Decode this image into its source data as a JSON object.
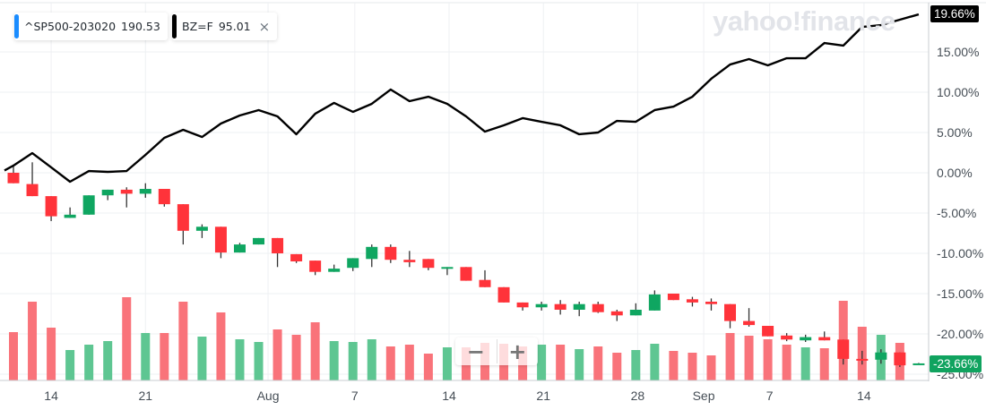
{
  "legend": [
    {
      "symbol": "^SP500-203020",
      "value": "190.53",
      "color": "#1a8cff"
    },
    {
      "symbol": "BZ=F",
      "value": "95.01",
      "color": "#000000",
      "close_icon": "close-icon",
      "close_label": "×"
    }
  ],
  "watermark": "yahoo!finance",
  "last_labels": {
    "line": {
      "text": "19.66%",
      "color": "#000000"
    },
    "candle": {
      "text": "-23.66%",
      "color": "#10a35f"
    }
  },
  "zoom_controls": {
    "zoom_out": "−",
    "zoom_in": "+"
  },
  "colors": {
    "up": "#0fa661",
    "down": "#ff333a",
    "volume_up": "#5ec692",
    "volume_down": "#f9737a",
    "line": "#000000",
    "grid": "#eef0f3"
  },
  "chart_data": {
    "type": "candlestick+line+volume",
    "y_unit": "% change",
    "ylim": [
      -25,
      20
    ],
    "y_ticks": [
      "15.00%",
      "10.00%",
      "5.00%",
      "0.00%",
      "-5.00%",
      "-10.00%",
      "-15.00%",
      "-20.00%",
      "-25.00%"
    ],
    "y_tick_values": [
      15,
      10,
      5,
      0,
      -5,
      -10,
      -15,
      -20,
      -25
    ],
    "x_ticks": [
      {
        "label": "14",
        "index": 2
      },
      {
        "label": "21",
        "index": 7
      },
      {
        "label": "Aug",
        "index": 13.5
      },
      {
        "label": "7",
        "index": 18.1
      },
      {
        "label": "14",
        "index": 23.1
      },
      {
        "label": "21",
        "index": 28.1
      },
      {
        "label": "28",
        "index": 33.1
      },
      {
        "label": "Sep",
        "index": 36.6
      },
      {
        "label": "7",
        "index": 40.1
      },
      {
        "label": "14",
        "index": 45.1
      }
    ],
    "grid": true,
    "line_series": {
      "name": "BZ=F",
      "values": [
        0.89,
        2.44,
        0.67,
        -1.11,
        0.22,
        0.11,
        0.22,
        2.22,
        4.33,
        5.33,
        4.44,
        6.11,
        7.11,
        7.78,
        7.0,
        4.78,
        7.33,
        8.67,
        7.56,
        8.56,
        10.33,
        8.89,
        9.44,
        8.56,
        7.0,
        5.11,
        5.89,
        6.78,
        6.33,
        5.89,
        4.78,
        5.0,
        6.44,
        6.33,
        7.78,
        8.22,
        9.44,
        11.67,
        13.44,
        14.11,
        13.33,
        14.22,
        14.22,
        16.11,
        15.78,
        18.11,
        18.33,
        19.0,
        19.66
      ]
    },
    "candle_series": {
      "name": "^SP500-203020",
      "ohlc": [
        [
          0.0,
          0.8,
          -1.3,
          -1.3
        ],
        [
          -1.4,
          1.3,
          -2.9,
          -2.9
        ],
        [
          -2.9,
          -2.9,
          -6.0,
          -5.4
        ],
        [
          -5.6,
          -4.3,
          -5.6,
          -5.2
        ],
        [
          -5.2,
          -2.8,
          -5.2,
          -2.8
        ],
        [
          -2.8,
          -2.1,
          -3.4,
          -2.1
        ],
        [
          -2.1,
          -1.8,
          -4.3,
          -2.6
        ],
        [
          -2.6,
          -1.3,
          -3.1,
          -2.0
        ],
        [
          -2.0,
          -2.0,
          -4.2,
          -3.9
        ],
        [
          -3.9,
          -3.9,
          -8.9,
          -7.2
        ],
        [
          -7.2,
          -6.4,
          -8.1,
          -6.7
        ],
        [
          -6.7,
          -6.7,
          -10.6,
          -9.9
        ],
        [
          -9.9,
          -8.7,
          -9.9,
          -8.9
        ],
        [
          -8.9,
          -8.1,
          -8.9,
          -8.1
        ],
        [
          -8.1,
          -8.1,
          -11.7,
          -10.0
        ],
        [
          -10.1,
          -10.1,
          -11.2,
          -11.0
        ],
        [
          -10.9,
          -10.9,
          -12.7,
          -12.3
        ],
        [
          -12.3,
          -11.4,
          -12.3,
          -11.9
        ],
        [
          -11.8,
          -10.6,
          -12.2,
          -10.6
        ],
        [
          -10.7,
          -8.9,
          -11.7,
          -9.2
        ],
        [
          -9.2,
          -8.9,
          -11.2,
          -10.8
        ],
        [
          -10.8,
          -9.7,
          -11.7,
          -11.1
        ],
        [
          -10.7,
          -10.7,
          -12.1,
          -11.8
        ],
        [
          -11.9,
          -11.7,
          -12.7,
          -11.7
        ],
        [
          -11.7,
          -11.7,
          -13.4,
          -13.4
        ],
        [
          -13.3,
          -12.1,
          -14.2,
          -14.2
        ],
        [
          -14.2,
          -14.2,
          -16.1,
          -16.1
        ],
        [
          -16.1,
          -16.1,
          -17.1,
          -16.7
        ],
        [
          -16.7,
          -16.0,
          -17.1,
          -16.3
        ],
        [
          -16.3,
          -15.8,
          -17.6,
          -17.0
        ],
        [
          -17.0,
          -16.0,
          -17.8,
          -16.3
        ],
        [
          -16.3,
          -16.0,
          -17.4,
          -17.3
        ],
        [
          -17.2,
          -17.0,
          -18.4,
          -17.7
        ],
        [
          -17.7,
          -16.2,
          -17.7,
          -17.0
        ],
        [
          -17.1,
          -14.6,
          -17.1,
          -15.1
        ],
        [
          -15.0,
          -15.0,
          -15.8,
          -15.8
        ],
        [
          -15.7,
          -15.4,
          -16.6,
          -16.1
        ],
        [
          -16.0,
          -15.6,
          -17.1,
          -16.3
        ],
        [
          -16.3,
          -16.3,
          -19.3,
          -18.4
        ],
        [
          -18.4,
          -16.8,
          -19.1,
          -18.9
        ],
        [
          -19.0,
          -19.0,
          -20.3,
          -20.3
        ],
        [
          -20.2,
          -19.9,
          -20.9,
          -20.7
        ],
        [
          -20.8,
          -20.1,
          -21.0,
          -20.4
        ],
        [
          -20.4,
          -19.7,
          -20.8,
          -20.8
        ],
        [
          -20.7,
          -20.7,
          -23.8,
          -23.1
        ],
        [
          -23.1,
          -22.1,
          -23.8,
          -23.3
        ],
        [
          -23.2,
          -21.9,
          -23.7,
          -22.3
        ],
        [
          -22.3,
          -22.3,
          -24.1,
          -23.9
        ],
        [
          -23.8,
          -23.6,
          -23.8,
          -23.66
        ]
      ],
      "ohlc_order": [
        "open",
        "high",
        "low",
        "close"
      ]
    },
    "volume_relative": [
      54,
      88,
      59,
      34,
      40,
      44,
      93,
      53,
      53,
      88,
      49,
      76,
      46,
      43,
      57,
      51,
      65,
      44,
      43,
      46,
      38,
      40,
      30,
      37,
      37,
      42,
      41,
      38,
      40,
      40,
      35,
      38,
      31,
      34,
      41,
      33,
      31,
      28,
      53,
      50,
      46,
      40,
      37,
      36,
      89,
      60,
      51,
      42,
      0
    ]
  }
}
